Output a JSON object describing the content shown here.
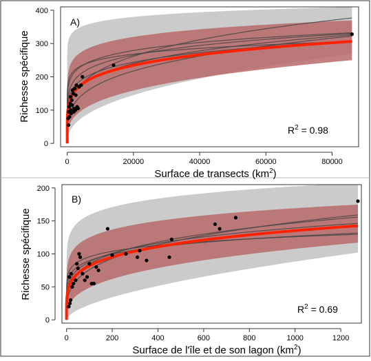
{
  "chart_data": [
    {
      "type": "scatter",
      "panel_label": "A)",
      "xlabel": "Surface de transects (km",
      "xlabel_sup": "2",
      "xlabel_end": ")",
      "ylabel": "Richesse spécifique",
      "xlim": [
        -2000,
        88000
      ],
      "ylim": [
        -10,
        410
      ],
      "xticks": [
        0,
        20000,
        40000,
        60000,
        80000
      ],
      "yticks": [
        0,
        100,
        200,
        300,
        400
      ],
      "annotation_prefix": "R",
      "annotation_sup": "2",
      "annotation_value": " = 0.98",
      "grid": false,
      "colors": {
        "fit": "#ff2200",
        "ci": "#b86a6a",
        "pred": "#c8c8c8",
        "curves": "#444444",
        "points": "#000000"
      },
      "fit": {
        "a": 38.3,
        "b": 0.183
      },
      "ci_band": {
        "lower": {
          "a": 7.3,
          "b": 0.311
        },
        "upper": {
          "a": 120,
          "b": 0.099
        }
      },
      "pred_band": {
        "lower": {
          "a": 2.2,
          "b": 0.423
        },
        "upper": {
          "a": 227,
          "b": 0.052
        }
      },
      "curves": [
        {
          "a": 15,
          "b": 0.27
        },
        {
          "a": 60,
          "b": 0.15
        },
        {
          "a": 85,
          "b": 0.12
        },
        {
          "a": 30,
          "b": 0.21
        },
        {
          "a": 22,
          "b": 0.25
        },
        {
          "a": 50,
          "b": 0.16
        },
        {
          "a": 110,
          "b": 0.09
        }
      ],
      "points": [
        [
          300,
          75
        ],
        [
          400,
          55
        ],
        [
          500,
          95
        ],
        [
          600,
          110
        ],
        [
          700,
          80
        ],
        [
          900,
          120
        ],
        [
          1000,
          140
        ],
        [
          1100,
          100
        ],
        [
          1200,
          90
        ],
        [
          1400,
          130
        ],
        [
          1500,
          115
        ],
        [
          1600,
          160
        ],
        [
          1800,
          150
        ],
        [
          2000,
          95
        ],
        [
          2100,
          105
        ],
        [
          2300,
          165
        ],
        [
          2500,
          100
        ],
        [
          2600,
          145
        ],
        [
          2800,
          175
        ],
        [
          3000,
          110
        ],
        [
          3300,
          105
        ],
        [
          3600,
          170
        ],
        [
          4200,
          175
        ],
        [
          4600,
          200
        ],
        [
          14000,
          235
        ],
        [
          86000,
          328
        ]
      ]
    },
    {
      "type": "scatter",
      "panel_label": "B)",
      "xlabel": "Surface de l'île et de son lagon (km",
      "xlabel_sup": "2",
      "xlabel_end": ")",
      "ylabel": "Richesse spécifique",
      "xlim": [
        -20,
        1290
      ],
      "ylim": [
        -5,
        205
      ],
      "xticks": [
        0,
        200,
        400,
        600,
        800,
        1000,
        1200
      ],
      "yticks": [
        0,
        50,
        100,
        150,
        200
      ],
      "annotation_prefix": "R",
      "annotation_sup": "2",
      "annotation_value": " = 0.69",
      "grid": false,
      "colors": {
        "fit": "#ff2200",
        "ci": "#b86a6a",
        "pred": "#c8c8c8",
        "curves": "#444444",
        "points": "#000000"
      },
      "fit": {
        "a": 30,
        "b": 0.218
      },
      "ci_band": {
        "lower": {
          "a": 10,
          "b": 0.344
        },
        "upper": {
          "a": 68,
          "b": 0.132
        }
      },
      "pred_band": {
        "lower": {
          "a": 1.5,
          "b": 0.59
        },
        "upper": {
          "a": 98,
          "b": 0.105
        }
      },
      "curves": [
        {
          "a": 20,
          "b": 0.29
        },
        {
          "a": 35,
          "b": 0.2
        },
        {
          "a": 45,
          "b": 0.15
        },
        {
          "a": 28,
          "b": 0.24
        },
        {
          "a": 55,
          "b": 0.12
        }
      ],
      "points": [
        [
          10,
          20
        ],
        [
          12,
          65
        ],
        [
          15,
          25
        ],
        [
          18,
          30
        ],
        [
          20,
          70
        ],
        [
          25,
          50
        ],
        [
          30,
          55
        ],
        [
          40,
          60
        ],
        [
          45,
          85
        ],
        [
          50,
          78
        ],
        [
          55,
          100
        ],
        [
          60,
          95
        ],
        [
          70,
          70
        ],
        [
          80,
          60
        ],
        [
          90,
          65
        ],
        [
          100,
          85
        ],
        [
          110,
          55
        ],
        [
          120,
          55
        ],
        [
          130,
          80
        ],
        [
          140,
          75
        ],
        [
          180,
          138
        ],
        [
          200,
          98
        ],
        [
          260,
          100
        ],
        [
          310,
          95
        ],
        [
          320,
          105
        ],
        [
          350,
          90
        ],
        [
          450,
          95
        ],
        [
          460,
          122
        ],
        [
          650,
          145
        ],
        [
          670,
          138
        ],
        [
          740,
          155
        ],
        [
          1275,
          180
        ]
      ]
    }
  ]
}
